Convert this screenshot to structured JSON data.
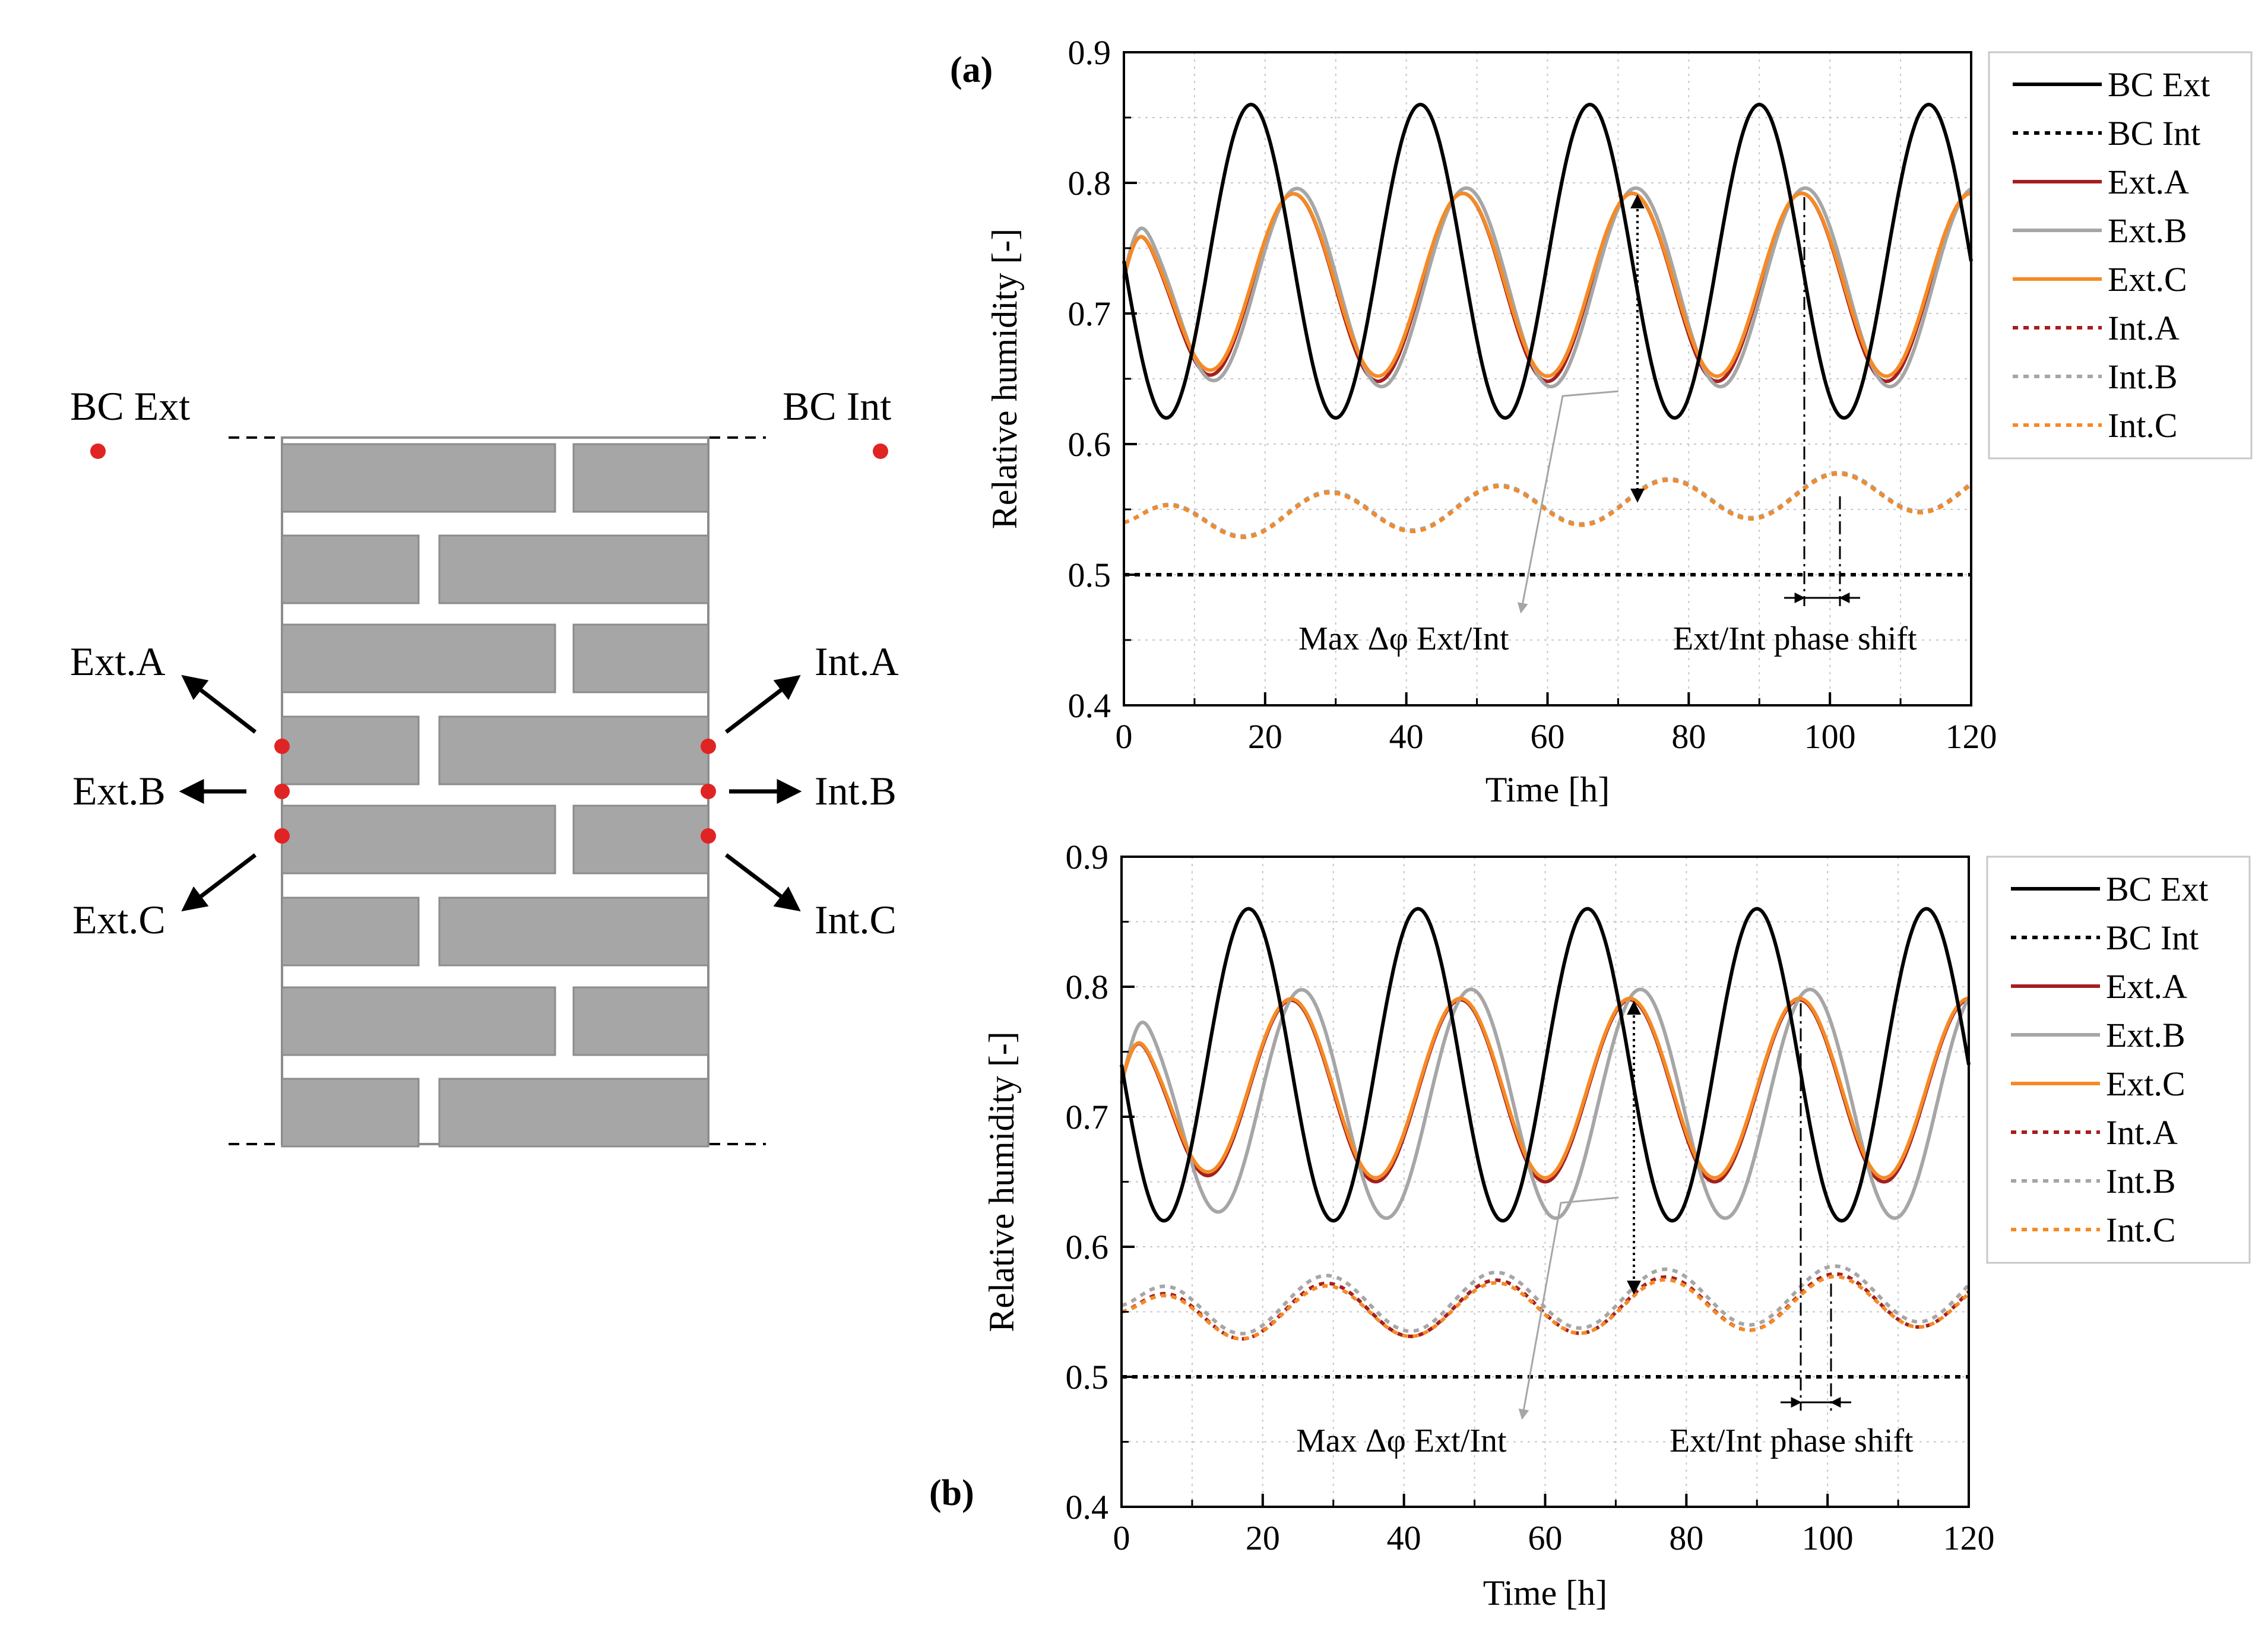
{
  "colors": {
    "bc_ext": "#000000",
    "bc_int": "#000000",
    "ext_a": "#a51f1f",
    "ext_b": "#a6a6a6",
    "ext_c": "#f58a25",
    "brick": "#a6a6a6",
    "brick_edge": "#8c8c8c",
    "point": "#e02424",
    "grid": "#c8c8c8"
  },
  "schematic": {
    "bc_ext_label": "BC Ext",
    "bc_int_label": "BC Int",
    "ext_labels": [
      "Ext.A",
      "Ext.B",
      "Ext.C"
    ],
    "int_labels": [
      "Int.A",
      "Int.B",
      "Int.C"
    ]
  },
  "chart_data": [
    {
      "panel_label": "(a)",
      "type": "line",
      "xlabel": "Time [h]",
      "ylabel": "Relative humidity [-]",
      "xlim": [
        0,
        120
      ],
      "ylim": [
        0.4,
        0.9
      ],
      "xticks": [
        "0",
        "20",
        "40",
        "60",
        "80",
        "100",
        "120"
      ],
      "yticks": [
        "0.4",
        "0.5",
        "0.6",
        "0.7",
        "0.8",
        "0.9"
      ],
      "grid": true,
      "legend_position": "right",
      "series": [
        {
          "name": "BC Ext",
          "style": "solid",
          "color_key": "bc_ext",
          "model": {
            "type": "sine",
            "mean": 0.74,
            "amp": 0.12,
            "period": 24,
            "peak_t": 18
          }
        },
        {
          "name": "BC Int",
          "style": "dotted",
          "color_key": "bc_int",
          "model": {
            "type": "constant",
            "value": 0.5
          }
        },
        {
          "name": "Ext.A",
          "style": "solid",
          "color_key": "ext_a",
          "model": {
            "type": "sine",
            "mean": 0.72,
            "amp": 0.072,
            "period": 24,
            "peak_t": 24,
            "init": 0.72,
            "init_peak": 0.745,
            "init_peak_t": 2.5,
            "settle": 10
          }
        },
        {
          "name": "Ext.B",
          "style": "solid",
          "color_key": "ext_b",
          "model": {
            "type": "sine",
            "mean": 0.72,
            "amp": 0.076,
            "period": 24,
            "peak_t": 24.5,
            "init": 0.72,
            "init_peak": 0.75,
            "init_peak_t": 2.5,
            "settle": 10
          }
        },
        {
          "name": "Ext.C",
          "style": "solid",
          "color_key": "ext_c",
          "model": {
            "type": "sine",
            "mean": 0.722,
            "amp": 0.07,
            "period": 24,
            "peak_t": 24,
            "init": 0.72,
            "init_peak": 0.745,
            "init_peak_t": 2.5,
            "settle": 10
          }
        },
        {
          "name": "Int.A",
          "style": "dotted",
          "color_key": "ext_a",
          "model": {
            "type": "sine",
            "mean": 0.541,
            "amp": 0.016,
            "period": 24,
            "peak_t": 5,
            "drift": 0.0002,
            "init": 0.54,
            "settle": 10
          }
        },
        {
          "name": "Int.B",
          "style": "dotted",
          "color_key": "ext_b",
          "model": {
            "type": "sine",
            "mean": 0.542,
            "amp": 0.016,
            "period": 24,
            "peak_t": 5,
            "drift": 0.0002,
            "init": 0.54,
            "settle": 10
          }
        },
        {
          "name": "Int.C",
          "style": "dotted",
          "color_key": "ext_c",
          "model": {
            "type": "sine",
            "mean": 0.541,
            "amp": 0.016,
            "period": 24,
            "peak_t": 5,
            "drift": 0.0002,
            "init": 0.54,
            "settle": 10
          }
        }
      ],
      "annotations": {
        "max_delta": "Max Δφ Ext/Int",
        "phase_shift": "Ext/Int phase shift"
      }
    },
    {
      "panel_label": "(b)",
      "type": "line",
      "xlabel": "Time [h]",
      "ylabel": "Relative humidity [-]",
      "xlim": [
        0,
        120
      ],
      "ylim": [
        0.4,
        0.9
      ],
      "xticks": [
        "0",
        "20",
        "40",
        "60",
        "80",
        "100",
        "120"
      ],
      "yticks": [
        "0.4",
        "0.5",
        "0.6",
        "0.7",
        "0.8",
        "0.9"
      ],
      "grid": true,
      "legend_position": "right",
      "series": [
        {
          "name": "BC Ext",
          "style": "solid",
          "color_key": "bc_ext",
          "model": {
            "type": "sine",
            "mean": 0.74,
            "amp": 0.12,
            "period": 24,
            "peak_t": 18
          }
        },
        {
          "name": "BC Int",
          "style": "dotted",
          "color_key": "bc_int",
          "model": {
            "type": "constant",
            "value": 0.5
          }
        },
        {
          "name": "Ext.A",
          "style": "solid",
          "color_key": "ext_a",
          "model": {
            "type": "sine",
            "mean": 0.72,
            "amp": 0.07,
            "period": 24,
            "peak_t": 24,
            "init": 0.72,
            "init_peak": 0.742,
            "init_peak_t": 2.5,
            "settle": 10
          }
        },
        {
          "name": "Ext.B",
          "style": "solid",
          "color_key": "ext_b",
          "model": {
            "type": "sine",
            "mean": 0.71,
            "amp": 0.088,
            "period": 24,
            "peak_t": 25.5,
            "init": 0.72,
            "init_peak": 0.755,
            "init_peak_t": 3,
            "settle": 10
          }
        },
        {
          "name": "Ext.C",
          "style": "solid",
          "color_key": "ext_c",
          "model": {
            "type": "sine",
            "mean": 0.722,
            "amp": 0.069,
            "period": 24,
            "peak_t": 24,
            "init": 0.72,
            "init_peak": 0.742,
            "init_peak_t": 2.5,
            "settle": 10
          }
        },
        {
          "name": "Int.A",
          "style": "dotted",
          "color_key": "ext_a",
          "model": {
            "type": "sine",
            "mean": 0.548,
            "amp": 0.021,
            "period": 24,
            "peak_t": 5,
            "drift": 0.0001,
            "init": 0.55,
            "settle": 10
          }
        },
        {
          "name": "Int.B",
          "style": "dotted",
          "color_key": "ext_b",
          "model": {
            "type": "sine",
            "mean": 0.553,
            "amp": 0.022,
            "period": 24,
            "peak_t": 5,
            "drift": 0.0001,
            "init": 0.555,
            "settle": 10
          }
        },
        {
          "name": "Int.C",
          "style": "dotted",
          "color_key": "ext_c",
          "model": {
            "type": "sine",
            "mean": 0.547,
            "amp": 0.02,
            "period": 24,
            "peak_t": 5,
            "drift": 0.0001,
            "init": 0.55,
            "settle": 10
          }
        }
      ],
      "annotations": {
        "max_delta": "Max Δφ Ext/Int",
        "phase_shift": "Ext/Int phase shift"
      }
    }
  ]
}
